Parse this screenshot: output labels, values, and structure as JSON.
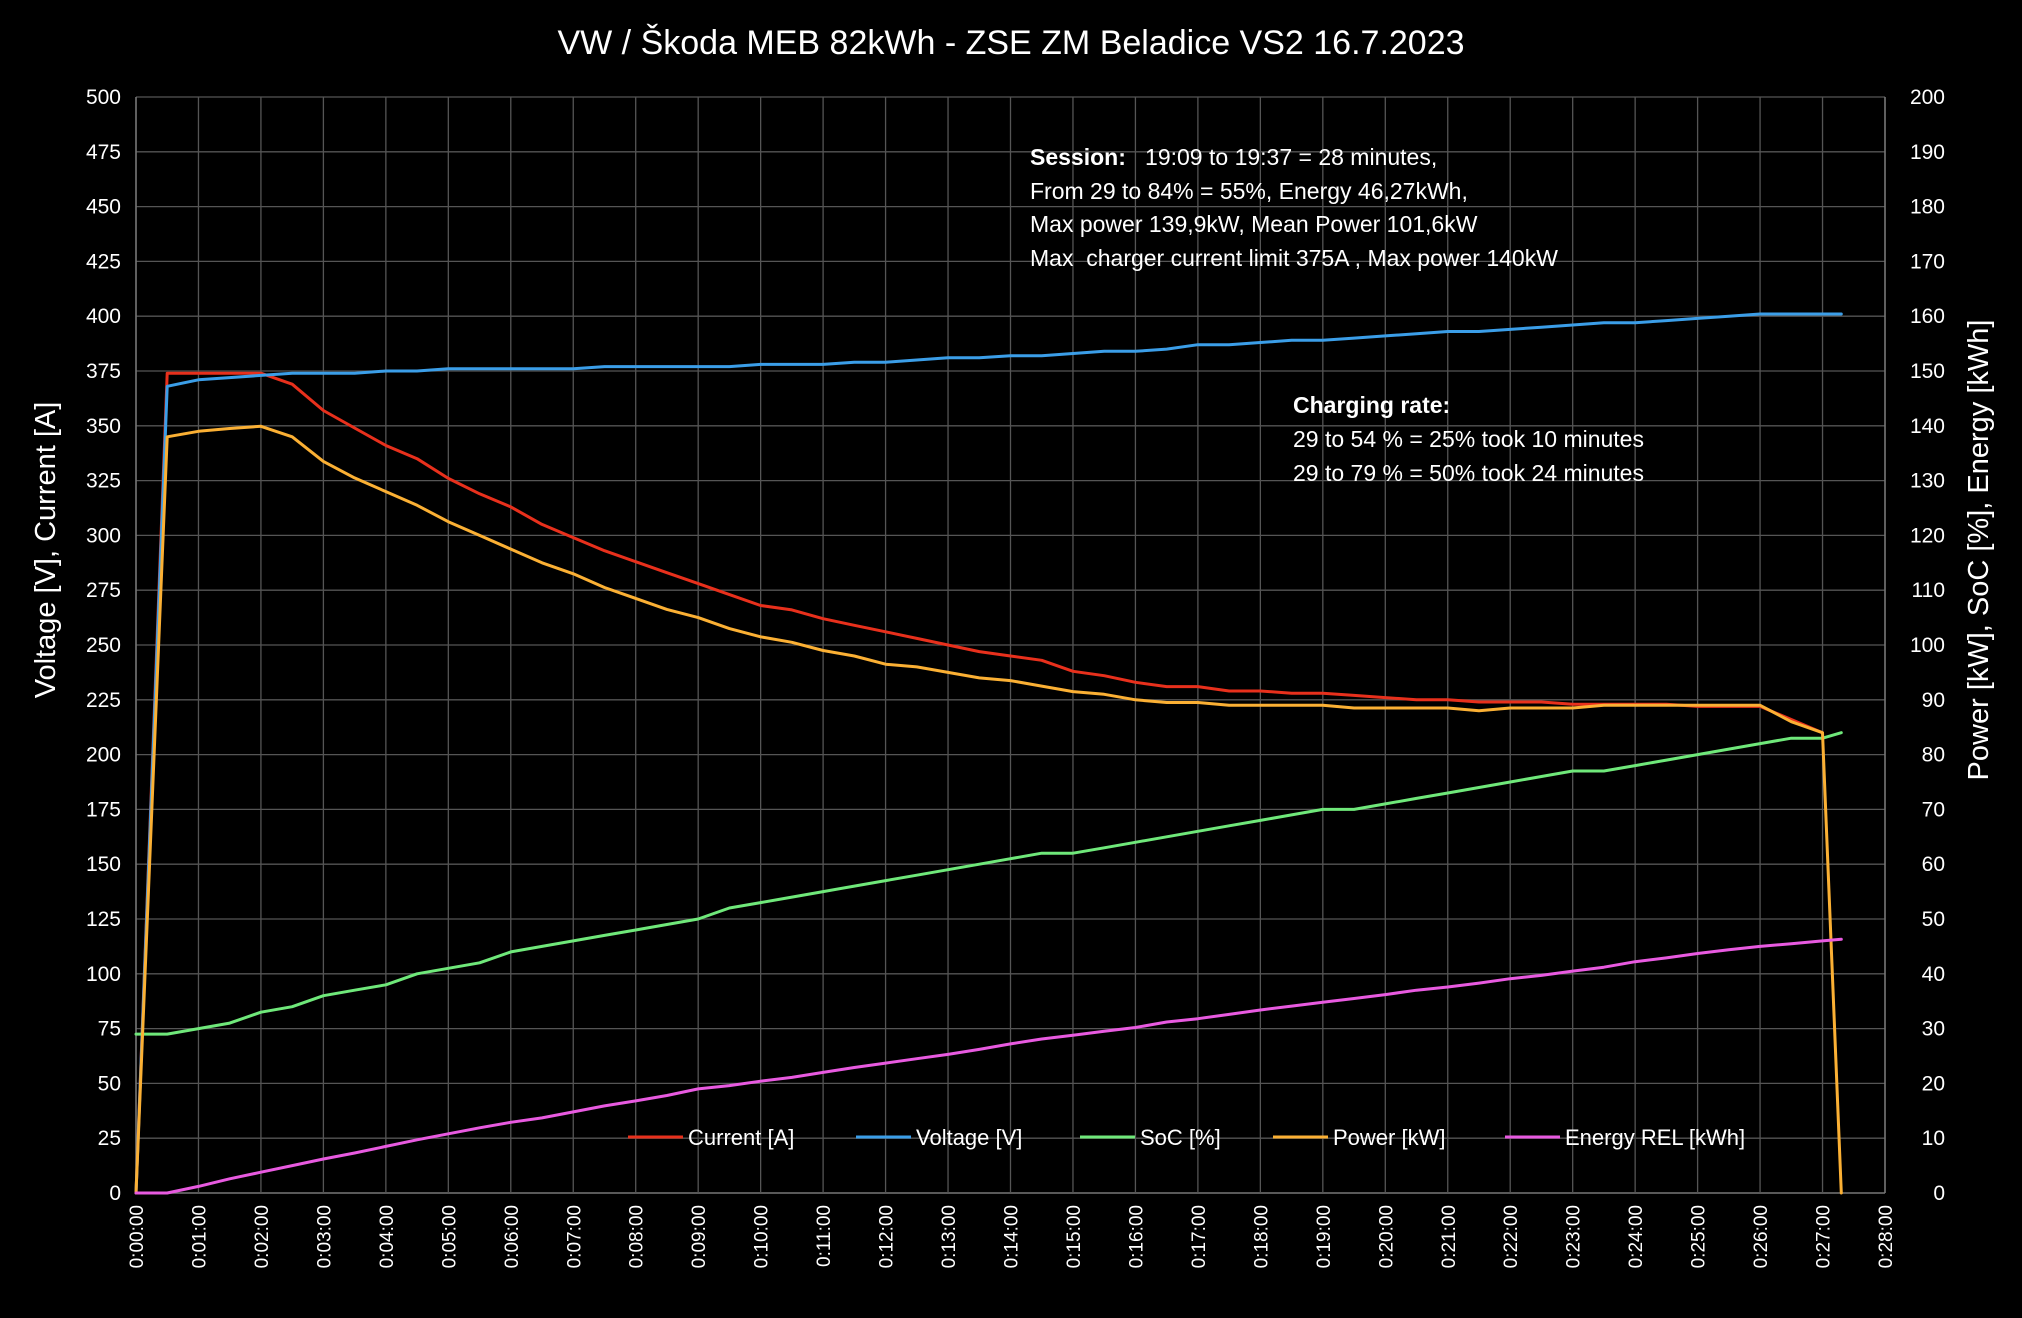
{
  "chart_data": {
    "type": "line",
    "title": "VW / Škoda MEB 82kWh  - ZSE ZM Beladice VS2 16.7.2023",
    "ylabel_left": "Voltage [V], Current [A]",
    "ylabel_right": "Power [kW], SoC [%], Energy [kWh]",
    "xlabel": "",
    "ylim_left": [
      0,
      500
    ],
    "ylim_right": [
      0,
      200
    ],
    "xlim_minutes": [
      0,
      28
    ],
    "grid": true,
    "legend_position": "bottom-center",
    "y_ticks_left": [
      "0",
      "25",
      "50",
      "75",
      "100",
      "125",
      "150",
      "175",
      "200",
      "225",
      "250",
      "275",
      "300",
      "325",
      "350",
      "375",
      "400",
      "425",
      "450",
      "475",
      "500"
    ],
    "y_ticks_right": [
      "0",
      "10",
      "20",
      "30",
      "40",
      "50",
      "60",
      "70",
      "80",
      "90",
      "100",
      "110",
      "120",
      "130",
      "140",
      "150",
      "160",
      "170",
      "180",
      "190",
      "200"
    ],
    "x_ticks": [
      "0:00:00",
      "0:01:00",
      "0:02:00",
      "0:03:00",
      "0:04:00",
      "0:05:00",
      "0:06:00",
      "0:07:00",
      "0:08:00",
      "0:09:00",
      "0:10:00",
      "0:11:00",
      "0:12:00",
      "0:13:00",
      "0:14:00",
      "0:15:00",
      "0:16:00",
      "0:17:00",
      "0:18:00",
      "0:19:00",
      "0:20:00",
      "0:21:00",
      "0:22:00",
      "0:23:00",
      "0:24:00",
      "0:25:00",
      "0:26:00",
      "0:27:00",
      "0:28:00"
    ],
    "x_minutes": [
      0,
      0.5,
      1,
      1.5,
      2,
      2.5,
      3,
      3.5,
      4,
      4.5,
      5,
      5.5,
      6,
      6.5,
      7,
      7.5,
      8,
      8.5,
      9,
      9.5,
      10,
      10.5,
      11,
      11.5,
      12,
      12.5,
      13,
      13.5,
      14,
      14.5,
      15,
      15.5,
      16,
      16.5,
      17,
      17.5,
      18,
      18.5,
      19,
      19.5,
      20,
      20.5,
      21,
      21.5,
      22,
      22.5,
      23,
      23.5,
      24,
      24.5,
      25,
      25.5,
      26,
      26.5,
      27,
      27.3
    ],
    "series": [
      {
        "name": "Current [A]",
        "axis": "left",
        "color": "#e8301c",
        "values": [
          0,
          374,
          374,
          374,
          374,
          369,
          357,
          349,
          341,
          335,
          326,
          319,
          313,
          305,
          299,
          293,
          288,
          283,
          278,
          273,
          268,
          266,
          262,
          259,
          256,
          253,
          250,
          247,
          245,
          243,
          238,
          236,
          233,
          231,
          231,
          229,
          229,
          228,
          228,
          227,
          226,
          225,
          225,
          224,
          224,
          224,
          223,
          223,
          223,
          223,
          222,
          222,
          222,
          216,
          210,
          null
        ]
      },
      {
        "name": "Voltage [V]",
        "axis": "left",
        "color": "#3b9ee8",
        "values": [
          0,
          368,
          371,
          372,
          373,
          374,
          374,
          374,
          375,
          375,
          376,
          376,
          376,
          376,
          376,
          377,
          377,
          377,
          377,
          377,
          378,
          378,
          378,
          379,
          379,
          380,
          381,
          381,
          382,
          382,
          383,
          384,
          384,
          385,
          387,
          387,
          388,
          389,
          389,
          390,
          391,
          392,
          393,
          393,
          394,
          395,
          396,
          397,
          397,
          398,
          399,
          400,
          401,
          401,
          401,
          401
        ]
      },
      {
        "name": "SoC [%]",
        "axis": "right",
        "color": "#6fe87a",
        "values": [
          29,
          29,
          30,
          31,
          33,
          34,
          36,
          37,
          38,
          40,
          41,
          42,
          44,
          45,
          46,
          47,
          48,
          49,
          50,
          52,
          53,
          54,
          55,
          56,
          57,
          58,
          59,
          60,
          61,
          62,
          62,
          63,
          64,
          65,
          66,
          67,
          68,
          69,
          70,
          70,
          71,
          72,
          73,
          74,
          75,
          76,
          77,
          77,
          78,
          79,
          80,
          81,
          82,
          83,
          83,
          84
        ]
      },
      {
        "name": "Power [kW]",
        "axis": "right",
        "color": "#fbb034",
        "values": [
          0,
          138,
          139,
          139.5,
          139.9,
          138,
          133.5,
          130.5,
          128,
          125.5,
          122.5,
          120,
          117.5,
          115,
          113,
          110.5,
          108.5,
          106.5,
          105,
          103,
          101.5,
          100.5,
          99,
          98,
          96.5,
          96,
          95,
          94,
          93.5,
          92.5,
          91.5,
          91,
          90,
          89.5,
          89.5,
          89,
          89,
          89,
          89,
          88.5,
          88.5,
          88.5,
          88.5,
          88,
          88.5,
          88.5,
          88.5,
          89,
          89,
          89,
          89,
          89,
          89,
          86,
          84,
          0
        ]
      },
      {
        "name": "Energy REL [kWh]",
        "axis": "right",
        "color": "#e85ae0",
        "values": [
          0,
          0,
          1.2,
          2.6,
          3.8,
          5,
          6.2,
          7.3,
          8.5,
          9.7,
          10.8,
          11.9,
          12.9,
          13.7,
          14.8,
          15.9,
          16.8,
          17.8,
          19,
          19.6,
          20.4,
          21.1,
          22,
          22.9,
          23.7,
          24.5,
          25.3,
          26.2,
          27.2,
          28.1,
          28.8,
          29.5,
          30.2,
          31.2,
          31.8,
          32.6,
          33.4,
          34.1,
          34.8,
          35.5,
          36.2,
          37,
          37.6,
          38.3,
          39.1,
          39.7,
          40.5,
          41.2,
          42.2,
          42.9,
          43.7,
          44.4,
          45,
          45.5,
          46,
          46.3
        ]
      }
    ],
    "annotations": {
      "session": {
        "bold_label": "Session:",
        "line1": "   19:09 to 19:37 = 28 minutes,",
        "line2": "From 29 to 84% = 55%, Energy 46,27kWh,",
        "line3": "Max power 139,9kW, Mean Power 101,6kW",
        "line4": "Max  charger current limit 375A , Max power 140kW"
      },
      "rate": {
        "bold_label": "Charging rate:",
        "line1": "29 to 54 % = 25% took 10 minutes",
        "line2": "29 to 79 % = 50% took 24 minutes"
      }
    }
  }
}
